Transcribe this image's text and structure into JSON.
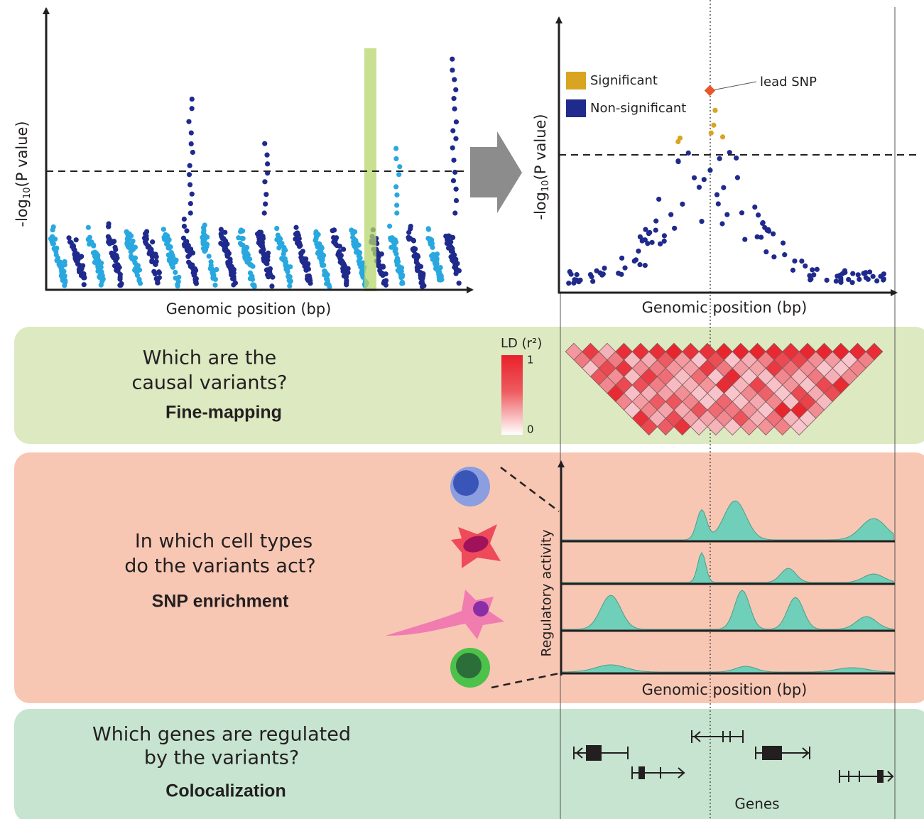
{
  "manhattan": {
    "y_label": {
      "prefix": "-log",
      "subscript": "10",
      "suffix": "(P value)"
    },
    "x_label": "Genomic position (bp)"
  },
  "locus_plot": {
    "y_label": {
      "prefix": "-log",
      "subscript": "10",
      "suffix": "(P value)"
    },
    "x_label": "Genomic position (bp)",
    "legend": [
      {
        "label": "Significant",
        "color": "#d9a520"
      },
      {
        "label": "Non-significant",
        "color": "#1f2a8c"
      }
    ],
    "annotation": "lead SNP"
  },
  "ld_legend": {
    "title": "LD (r²)",
    "max": "1",
    "min": "0"
  },
  "panels": [
    {
      "question": [
        "Which are the",
        "causal variants?"
      ],
      "method": "Fine-mapping"
    },
    {
      "question": [
        "In which cell types",
        "do the variants act?"
      ],
      "method": "SNP enrichment"
    },
    {
      "question": [
        "Which genes are regulated",
        "by the variants?"
      ],
      "method": "Colocalization"
    }
  ],
  "regulatory": {
    "y_label": "Regulatory activity",
    "x_label": "Genomic position (bp)"
  },
  "genes_label": "Genes"
}
